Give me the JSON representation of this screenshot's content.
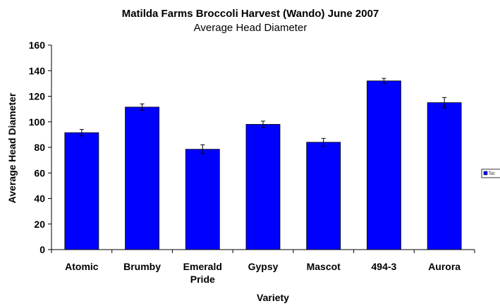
{
  "chart_data": {
    "type": "bar",
    "title": "Matilda Farms Broccoli Harvest (Wando) June 2007",
    "subtitle": "Average Head Diameter",
    "xlabel": "Variety",
    "ylabel": "Average Head Diameter",
    "categories": [
      "Atomic",
      "Brumby",
      "Emerald Pride",
      "Gypsy",
      "Mascot",
      "494-3",
      "Aurora"
    ],
    "category_lines": [
      [
        "Atomic"
      ],
      [
        "Brumby"
      ],
      [
        "Emerald",
        "Pride"
      ],
      [
        "Gypsy"
      ],
      [
        "Mascot"
      ],
      [
        "494-3"
      ],
      [
        "Aurora"
      ]
    ],
    "series": [
      {
        "name": "Tot",
        "color": "#0000ff",
        "values": [
          91.5,
          111.5,
          78.5,
          98,
          84,
          132,
          115
        ],
        "error": [
          2.5,
          2.5,
          3.5,
          2.5,
          3,
          2,
          4
        ]
      }
    ],
    "ylim": [
      0,
      160
    ],
    "yticks": [
      0,
      20,
      40,
      60,
      80,
      100,
      120,
      140,
      160
    ],
    "grid": false,
    "legend_position": "right"
  }
}
